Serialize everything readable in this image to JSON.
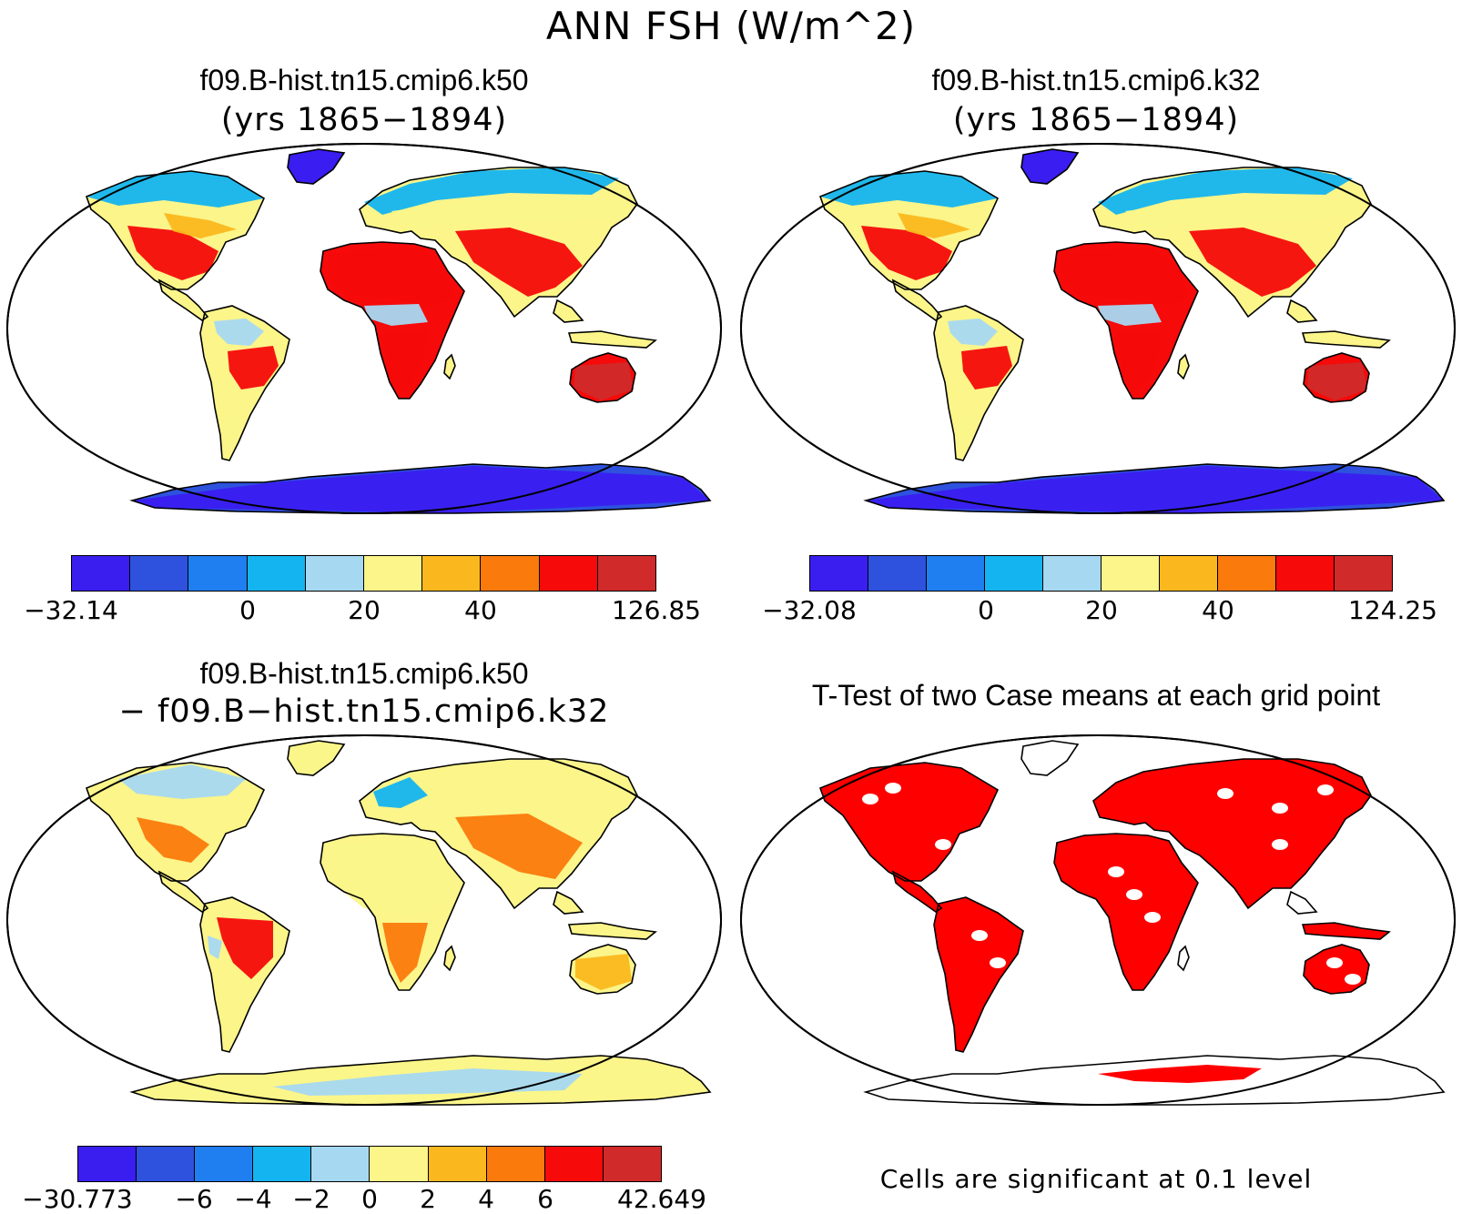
{
  "figure": {
    "title": "ANN FSH (W/m^2)",
    "note": "Cells are significant at 0.1 level"
  },
  "colors": {
    "levels": [
      "#3a1ef0",
      "#2e52de",
      "#1f7ff0",
      "#14b4f0",
      "#a6d8f2",
      "#fbf58a",
      "#fbb81e",
      "#fb7a0c",
      "#f60a0a",
      "#d12a2a"
    ],
    "ocean": "#ffffff",
    "significant": "#ff0000"
  },
  "panels": [
    {
      "id": "k50",
      "title": "f09.B-hist.tn15.cmip6.k50",
      "subtitle": "(yrs 1865−1894)",
      "colorbar_labels": [
        "−32.14",
        "0",
        "20",
        "40",
        "126.85"
      ]
    },
    {
      "id": "k32",
      "title": "f09.B-hist.tn15.cmip6.k32",
      "subtitle": "(yrs 1865−1894)",
      "colorbar_labels": [
        "−32.08",
        "0",
        "20",
        "40",
        "124.25"
      ]
    },
    {
      "id": "diff",
      "title": "f09.B-hist.tn15.cmip6.k50",
      "subtitle": "− f09.B−hist.tn15.cmip6.k32",
      "colorbar_labels": [
        "−30.773",
        "−6",
        "−4",
        "−2",
        "0",
        "2",
        "4",
        "6",
        "42.649"
      ]
    },
    {
      "id": "ttest",
      "title": "T-Test of two Case means at each grid point"
    }
  ]
}
